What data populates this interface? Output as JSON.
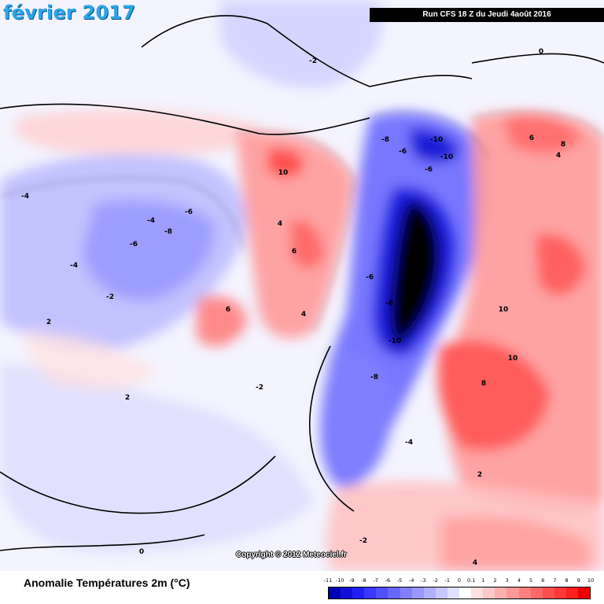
{
  "map": {
    "date_title": "février 2017",
    "run_info": "Run CFS 18 Z du Jeudi 4août 2016",
    "copyright": "Copyright © 2012 Meteociel.fr",
    "variable_title": "Anomalie Températures 2m (°C)",
    "contour_labels": [
      "-10",
      "-8",
      "-6",
      "-4",
      "-2",
      "0",
      "2",
      "4",
      "6",
      "8",
      "10"
    ]
  },
  "legend": {
    "labels": [
      "-11",
      "-10",
      "-9",
      "-8",
      "-7",
      "-6",
      "-5",
      "-4",
      "-3",
      "-2",
      "-1",
      "0",
      "0.1",
      "1",
      "2",
      "3",
      "4",
      "5",
      "6",
      "7",
      "8",
      "9",
      "10"
    ],
    "colors": [
      "#0000b4",
      "#1010d8",
      "#2020f0",
      "#3838ff",
      "#5050ff",
      "#6868ff",
      "#8080ff",
      "#9898ff",
      "#b0b0ff",
      "#c8c8ff",
      "#e0e0ff",
      "#ffffff",
      "#ffe0e0",
      "#ffc8c8",
      "#ffb0b0",
      "#ff9898",
      "#ff8080",
      "#ff6868",
      "#ff5050",
      "#ff3838",
      "#ff2020",
      "#f00000"
    ]
  }
}
